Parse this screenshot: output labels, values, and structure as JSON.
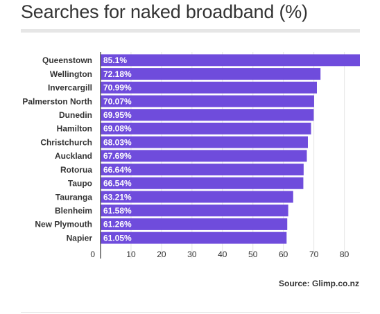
{
  "chart_data": {
    "type": "bar",
    "orientation": "horizontal",
    "title": "Searches for naked broadband (%)",
    "categories": [
      "Queenstown",
      "Wellington",
      "Invercargill",
      "Palmerston North",
      "Dunedin",
      "Hamilton",
      "Christchurch",
      "Auckland",
      "Rotorua",
      "Taupo",
      "Tauranga",
      "Blenheim",
      "New Plymouth",
      "Napier"
    ],
    "values": [
      85.1,
      72.18,
      70.99,
      70.07,
      69.95,
      69.08,
      68.03,
      67.69,
      66.64,
      66.54,
      63.21,
      61.58,
      61.26,
      61.05
    ],
    "value_labels": [
      "85.1%",
      "72.18%",
      "70.99%",
      "70.07%",
      "69.95%",
      "69.08%",
      "68.03%",
      "67.69%",
      "66.64%",
      "66.54%",
      "63.21%",
      "61.58%",
      "61.26%",
      "61.05%"
    ],
    "xticks": [
      0,
      10,
      20,
      30,
      40,
      50,
      60,
      70,
      80
    ],
    "xlim": [
      0,
      85.1
    ],
    "grid": true,
    "bar_color": "#6f4cdc",
    "source": "Source: Glimp.co.nz"
  }
}
